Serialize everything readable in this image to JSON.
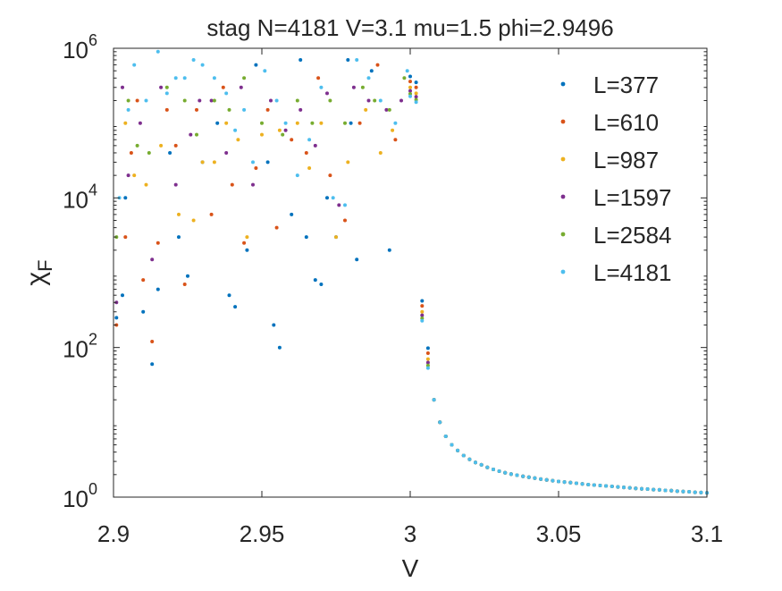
{
  "chart_data": {
    "type": "scatter",
    "title": "stag N=4181 V=3.1 mu=1.5 phi=2.9496",
    "xlabel": "V",
    "ylabel_main": "χ",
    "ylabel_sub": "F",
    "xlim": [
      2.9,
      3.1
    ],
    "ylim": [
      1,
      1000000
    ],
    "yscale": "log",
    "grid": false,
    "legend_position": "top-right",
    "x_ticks": [
      2.9,
      2.95,
      3.0,
      3.05,
      3.1
    ],
    "x_tick_labels": [
      "2.9",
      "2.95",
      "3",
      "3.05",
      "3.1"
    ],
    "y_ticks": [
      1,
      100,
      10000,
      1000000
    ],
    "y_tick_bases": [
      "10",
      "10",
      "10",
      "10"
    ],
    "y_tick_exponents": [
      "0",
      "2",
      "4",
      "6"
    ],
    "colors": [
      "#0072BD",
      "#D95319",
      "#EDB120",
      "#7E2F8E",
      "#77AC30",
      "#4DBEEE"
    ],
    "series": [
      {
        "name": "L=377"
      },
      {
        "name": "L=610"
      },
      {
        "name": "L=987"
      },
      {
        "name": "L=1597"
      },
      {
        "name": "L=2584"
      },
      {
        "name": "L=4181"
      }
    ],
    "tail": {
      "x": [
        3.0,
        3.002,
        3.004,
        3.006,
        3.008,
        3.01,
        3.012,
        3.014,
        3.016,
        3.018,
        3.02,
        3.022,
        3.024,
        3.026,
        3.028,
        3.03,
        3.032,
        3.034,
        3.036,
        3.038,
        3.04,
        3.042,
        3.044,
        3.046,
        3.048,
        3.05,
        3.052,
        3.054,
        3.056,
        3.058,
        3.06,
        3.062,
        3.064,
        3.066,
        3.068,
        3.07,
        3.072,
        3.074,
        3.076,
        3.078,
        3.08,
        3.082,
        3.084,
        3.086,
        3.088,
        3.09,
        3.092,
        3.094,
        3.096,
        3.098,
        3.1
      ],
      "y": [
        300000,
        250000,
        300,
        70,
        20,
        10,
        6.5,
        5,
        4.2,
        3.6,
        3.2,
        2.9,
        2.7,
        2.5,
        2.35,
        2.22,
        2.12,
        2.03,
        1.96,
        1.9,
        1.84,
        1.79,
        1.74,
        1.7,
        1.66,
        1.62,
        1.59,
        1.56,
        1.53,
        1.5,
        1.47,
        1.45,
        1.43,
        1.41,
        1.39,
        1.37,
        1.35,
        1.33,
        1.31,
        1.29,
        1.28,
        1.26,
        1.25,
        1.23,
        1.22,
        1.2,
        1.19,
        1.18,
        1.16,
        1.15,
        1.14
      ],
      "offsets": [
        1.4,
        1.2,
        1.0,
        0.9,
        0.82,
        0.76
      ]
    },
    "scatter_points": [
      {
        "s": 0,
        "x": 2.901,
        "y": 250
      },
      {
        "s": 0,
        "x": 2.903,
        "y": 500
      },
      {
        "s": 0,
        "x": 2.904,
        "y": 10000
      },
      {
        "s": 0,
        "x": 2.91,
        "y": 300
      },
      {
        "s": 0,
        "x": 2.913,
        "y": 60
      },
      {
        "s": 0,
        "x": 2.915,
        "y": 600
      },
      {
        "s": 0,
        "x": 2.919,
        "y": 40000
      },
      {
        "s": 0,
        "x": 2.922,
        "y": 3000
      },
      {
        "s": 0,
        "x": 2.925,
        "y": 900
      },
      {
        "s": 0,
        "x": 2.93,
        "y": 30000
      },
      {
        "s": 0,
        "x": 2.935,
        "y": 100000
      },
      {
        "s": 0,
        "x": 2.939,
        "y": 500
      },
      {
        "s": 0,
        "x": 2.941,
        "y": 350
      },
      {
        "s": 0,
        "x": 2.945,
        "y": 2000
      },
      {
        "s": 0,
        "x": 2.948,
        "y": 600000
      },
      {
        "s": 0,
        "x": 2.952,
        "y": 30000
      },
      {
        "s": 0,
        "x": 2.954,
        "y": 200
      },
      {
        "s": 0,
        "x": 2.956,
        "y": 100
      },
      {
        "s": 0,
        "x": 2.96,
        "y": 6000
      },
      {
        "s": 0,
        "x": 2.963,
        "y": 700000
      },
      {
        "s": 0,
        "x": 2.965,
        "y": 3000
      },
      {
        "s": 0,
        "x": 2.968,
        "y": 800
      },
      {
        "s": 0,
        "x": 2.97,
        "y": 700
      },
      {
        "s": 0,
        "x": 2.972,
        "y": 10000
      },
      {
        "s": 0,
        "x": 2.975,
        "y": 3000
      },
      {
        "s": 0,
        "x": 2.979,
        "y": 700000
      },
      {
        "s": 0,
        "x": 2.98,
        "y": 100000
      },
      {
        "s": 0,
        "x": 2.982,
        "y": 1500
      },
      {
        "s": 0,
        "x": 2.987,
        "y": 500000
      },
      {
        "s": 0,
        "x": 2.993,
        "y": 2000
      },
      {
        "s": 1,
        "x": 2.901,
        "y": 200
      },
      {
        "s": 1,
        "x": 2.904,
        "y": 3000
      },
      {
        "s": 1,
        "x": 2.906,
        "y": 40000
      },
      {
        "s": 1,
        "x": 2.908,
        "y": 200000
      },
      {
        "s": 1,
        "x": 2.91,
        "y": 800
      },
      {
        "s": 1,
        "x": 2.913,
        "y": 120
      },
      {
        "s": 1,
        "x": 2.915,
        "y": 2500
      },
      {
        "s": 1,
        "x": 2.918,
        "y": 150000
      },
      {
        "s": 1,
        "x": 2.921,
        "y": 50000
      },
      {
        "s": 1,
        "x": 2.924,
        "y": 700
      },
      {
        "s": 1,
        "x": 2.928,
        "y": 150000
      },
      {
        "s": 1,
        "x": 2.933,
        "y": 6000
      },
      {
        "s": 1,
        "x": 2.937,
        "y": 300000
      },
      {
        "s": 1,
        "x": 2.94,
        "y": 15000
      },
      {
        "s": 1,
        "x": 2.944,
        "y": 2500
      },
      {
        "s": 1,
        "x": 2.948,
        "y": 25000
      },
      {
        "s": 1,
        "x": 2.952,
        "y": 150000
      },
      {
        "s": 1,
        "x": 2.955,
        "y": 4000
      },
      {
        "s": 1,
        "x": 2.96,
        "y": 60000
      },
      {
        "s": 1,
        "x": 2.965,
        "y": 40000
      },
      {
        "s": 1,
        "x": 2.969,
        "y": 400000
      },
      {
        "s": 1,
        "x": 2.973,
        "y": 20000
      },
      {
        "s": 1,
        "x": 2.978,
        "y": 5000
      },
      {
        "s": 1,
        "x": 2.983,
        "y": 100000
      },
      {
        "s": 1,
        "x": 2.989,
        "y": 600000
      },
      {
        "s": 1,
        "x": 2.995,
        "y": 60000
      },
      {
        "s": 2,
        "x": 2.904,
        "y": 100000
      },
      {
        "s": 2,
        "x": 2.907,
        "y": 20000
      },
      {
        "s": 2,
        "x": 2.911,
        "y": 15000
      },
      {
        "s": 2,
        "x": 2.916,
        "y": 50000
      },
      {
        "s": 2,
        "x": 2.922,
        "y": 6000
      },
      {
        "s": 2,
        "x": 2.927,
        "y": 5000
      },
      {
        "s": 2,
        "x": 2.93,
        "y": 30000
      },
      {
        "s": 2,
        "x": 2.934,
        "y": 30000
      },
      {
        "s": 2,
        "x": 2.938,
        "y": 100000
      },
      {
        "s": 2,
        "x": 2.942,
        "y": 60000
      },
      {
        "s": 2,
        "x": 2.945,
        "y": 3000
      },
      {
        "s": 2,
        "x": 2.95,
        "y": 70000
      },
      {
        "s": 2,
        "x": 2.956,
        "y": 80000
      },
      {
        "s": 2,
        "x": 2.962,
        "y": 100000
      },
      {
        "s": 2,
        "x": 2.966,
        "y": 25000
      },
      {
        "s": 2,
        "x": 2.97,
        "y": 100000
      },
      {
        "s": 2,
        "x": 2.975,
        "y": 3000
      },
      {
        "s": 2,
        "x": 2.979,
        "y": 30000
      },
      {
        "s": 2,
        "x": 2.985,
        "y": 150000
      },
      {
        "s": 2,
        "x": 2.99,
        "y": 40000
      },
      {
        "s": 2,
        "x": 2.994,
        "y": 80000
      },
      {
        "s": 3,
        "x": 2.901,
        "y": 400
      },
      {
        "s": 3,
        "x": 2.903,
        "y": 300000
      },
      {
        "s": 3,
        "x": 2.905,
        "y": 20000
      },
      {
        "s": 3,
        "x": 2.909,
        "y": 100000
      },
      {
        "s": 3,
        "x": 2.913,
        "y": 1500
      },
      {
        "s": 3,
        "x": 2.916,
        "y": 300000
      },
      {
        "s": 3,
        "x": 2.921,
        "y": 15000
      },
      {
        "s": 3,
        "x": 2.926,
        "y": 70000
      },
      {
        "s": 3,
        "x": 2.929,
        "y": 200000
      },
      {
        "s": 3,
        "x": 2.933,
        "y": 200000
      },
      {
        "s": 3,
        "x": 2.938,
        "y": 40000
      },
      {
        "s": 3,
        "x": 2.943,
        "y": 300000
      },
      {
        "s": 3,
        "x": 2.947,
        "y": 15000
      },
      {
        "s": 3,
        "x": 2.953,
        "y": 200000
      },
      {
        "s": 3,
        "x": 2.958,
        "y": 80000
      },
      {
        "s": 3,
        "x": 2.963,
        "y": 150000
      },
      {
        "s": 3,
        "x": 2.968,
        "y": 50000
      },
      {
        "s": 3,
        "x": 2.972,
        "y": 250000
      },
      {
        "s": 3,
        "x": 2.976,
        "y": 8000
      },
      {
        "s": 3,
        "x": 2.981,
        "y": 300000
      },
      {
        "s": 3,
        "x": 2.986,
        "y": 200000
      },
      {
        "s": 3,
        "x": 2.992,
        "y": 150000
      },
      {
        "s": 3,
        "x": 2.997,
        "y": 200000
      },
      {
        "s": 4,
        "x": 2.901,
        "y": 3000
      },
      {
        "s": 4,
        "x": 2.905,
        "y": 200000
      },
      {
        "s": 4,
        "x": 2.908,
        "y": 50000
      },
      {
        "s": 4,
        "x": 2.912,
        "y": 40000
      },
      {
        "s": 4,
        "x": 2.918,
        "y": 300000
      },
      {
        "s": 4,
        "x": 2.924,
        "y": 200000
      },
      {
        "s": 4,
        "x": 2.928,
        "y": 70000
      },
      {
        "s": 4,
        "x": 2.934,
        "y": 200000
      },
      {
        "s": 4,
        "x": 2.939,
        "y": 150000
      },
      {
        "s": 4,
        "x": 2.944,
        "y": 400000
      },
      {
        "s": 4,
        "x": 2.95,
        "y": 100000
      },
      {
        "s": 4,
        "x": 2.957,
        "y": 70000
      },
      {
        "s": 4,
        "x": 2.962,
        "y": 200000
      },
      {
        "s": 4,
        "x": 2.967,
        "y": 100000
      },
      {
        "s": 4,
        "x": 2.973,
        "y": 200000
      },
      {
        "s": 4,
        "x": 2.978,
        "y": 100000
      },
      {
        "s": 4,
        "x": 2.984,
        "y": 300000
      },
      {
        "s": 4,
        "x": 2.988,
        "y": 200000
      },
      {
        "s": 4,
        "x": 2.993,
        "y": 150000
      },
      {
        "s": 4,
        "x": 2.998,
        "y": 400000
      },
      {
        "s": 5,
        "x": 2.902,
        "y": 10000
      },
      {
        "s": 5,
        "x": 2.905,
        "y": 150000
      },
      {
        "s": 5,
        "x": 2.907,
        "y": 600000
      },
      {
        "s": 5,
        "x": 2.911,
        "y": 200000
      },
      {
        "s": 5,
        "x": 2.915,
        "y": 900000
      },
      {
        "s": 5,
        "x": 2.918,
        "y": 250000
      },
      {
        "s": 5,
        "x": 2.921,
        "y": 400000
      },
      {
        "s": 5,
        "x": 2.924,
        "y": 400000
      },
      {
        "s": 5,
        "x": 2.927,
        "y": 700000
      },
      {
        "s": 5,
        "x": 2.93,
        "y": 600000
      },
      {
        "s": 5,
        "x": 2.934,
        "y": 400000
      },
      {
        "s": 5,
        "x": 2.938,
        "y": 250000
      },
      {
        "s": 5,
        "x": 2.941,
        "y": 80000
      },
      {
        "s": 5,
        "x": 2.944,
        "y": 150000
      },
      {
        "s": 5,
        "x": 2.947,
        "y": 30000
      },
      {
        "s": 5,
        "x": 2.951,
        "y": 500000
      },
      {
        "s": 5,
        "x": 2.955,
        "y": 200000
      },
      {
        "s": 5,
        "x": 2.958,
        "y": 100000
      },
      {
        "s": 5,
        "x": 2.962,
        "y": 20000
      },
      {
        "s": 5,
        "x": 2.966,
        "y": 60000
      },
      {
        "s": 5,
        "x": 2.97,
        "y": 300000
      },
      {
        "s": 5,
        "x": 2.974,
        "y": 10000
      },
      {
        "s": 5,
        "x": 2.978,
        "y": 8000
      },
      {
        "s": 5,
        "x": 2.982,
        "y": 700000
      },
      {
        "s": 5,
        "x": 2.986,
        "y": 400000
      },
      {
        "s": 5,
        "x": 2.99,
        "y": 200000
      },
      {
        "s": 5,
        "x": 2.995,
        "y": 100000
      },
      {
        "s": 5,
        "x": 2.999,
        "y": 500000
      }
    ]
  }
}
